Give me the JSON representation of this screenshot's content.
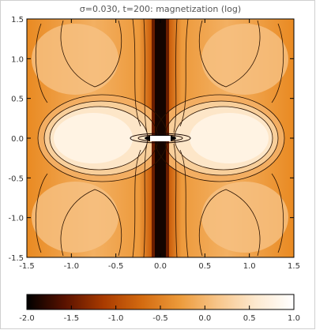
{
  "chart_data": {
    "type": "heatmap",
    "title": "σ=0.030, t=200: magnetization (log)",
    "xlabel": "",
    "ylabel": "",
    "xlim": [
      -1.5,
      1.5
    ],
    "ylim": [
      -1.5,
      1.5
    ],
    "x_ticks": [
      "-1.5",
      "-1.0",
      "-0.5",
      "0.0",
      "0.5",
      "1.0",
      "1.5"
    ],
    "y_ticks": [
      "-1.5",
      "-1.0",
      "-0.5",
      "0.0",
      "0.5",
      "1.0",
      "1.5"
    ],
    "grid": false,
    "colorbar": {
      "range": [
        -2.0,
        1.0
      ],
      "ticks": [
        "-2.0",
        "-1.5",
        "-1.0",
        "-0.5",
        "0.0",
        "0.5",
        "1.0"
      ],
      "colormap": [
        "#000000",
        "#5a1200",
        "#a83a00",
        "#d36a10",
        "#ec9a3a",
        "#f7c58a",
        "#fde9cf",
        "#ffffff"
      ]
    },
    "features": [
      {
        "name": "central dark jet",
        "x": 0.0,
        "width": 0.07,
        "value": -2.0
      },
      {
        "name": "left lobe",
        "x": -0.85,
        "y": 0.0,
        "value": 0.8
      },
      {
        "name": "right lobe",
        "x": 0.85,
        "y": 0.0,
        "value": 0.8
      },
      {
        "name": "central disk",
        "x": 0.0,
        "y": 0.0,
        "value": 1.0
      }
    ],
    "background_value": -0.6
  }
}
